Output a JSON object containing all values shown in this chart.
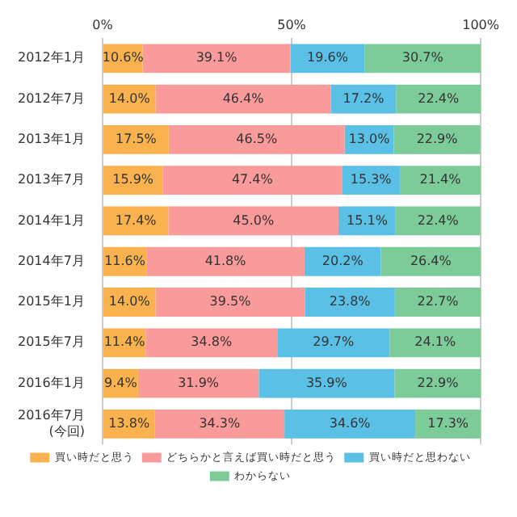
{
  "chart_data": {
    "type": "bar",
    "orientation": "horizontal",
    "stacked": true,
    "grid": "x",
    "legend": "bottom",
    "categories": [
      "2012年1月",
      "2012年7月",
      "2013年1月",
      "2013年7月",
      "2014年1月",
      "2014年7月",
      "2015年1月",
      "2015年7月",
      "2016年1月",
      "2016年7月\n(今回)"
    ],
    "xlim": [
      0,
      100
    ],
    "xticks": [
      {
        "value": 0,
        "label": "0%"
      },
      {
        "value": 50,
        "label": "50%"
      },
      {
        "value": 100,
        "label": "100%"
      }
    ],
    "series": [
      {
        "name": "買い時だと思う",
        "color": "#f9b24e",
        "values": [
          10.6,
          14.0,
          17.5,
          15.9,
          17.4,
          11.6,
          14.0,
          11.4,
          9.4,
          13.8
        ],
        "value_labels": [
          "10.6%",
          "14.0%",
          "17.5%",
          "15.9%",
          "17.4%",
          "11.6%",
          "14.0%",
          "11.4%",
          "9.4%",
          "13.8%"
        ]
      },
      {
        "name": "どちらかと言えば買い時だと思う",
        "color": "#f99a9b",
        "values": [
          39.1,
          46.4,
          46.5,
          47.4,
          45.0,
          41.8,
          39.5,
          34.8,
          31.9,
          34.3
        ],
        "value_labels": [
          "39.1%",
          "46.4%",
          "46.5%",
          "47.4%",
          "45.0%",
          "41.8%",
          "39.5%",
          "34.8%",
          "31.9%",
          "34.3%"
        ]
      },
      {
        "name": "買い時だと思わない",
        "color": "#5bc0e6",
        "values": [
          19.6,
          17.2,
          13.0,
          15.3,
          15.1,
          20.2,
          23.8,
          29.7,
          35.9,
          34.6
        ],
        "value_labels": [
          "19.6%",
          "17.2%",
          "13.0%",
          "15.3%",
          "15.1%",
          "20.2%",
          "23.8%",
          "29.7%",
          "35.9%",
          "34.6%"
        ]
      },
      {
        "name": "わからない",
        "color": "#7dcb98",
        "values": [
          30.7,
          22.4,
          22.9,
          21.4,
          22.4,
          26.4,
          22.7,
          24.1,
          22.9,
          17.3
        ],
        "value_labels": [
          "30.7%",
          "22.4%",
          "22.9%",
          "21.4%",
          "22.4%",
          "26.4%",
          "22.7%",
          "24.1%",
          "22.9%",
          "17.3%"
        ]
      }
    ]
  }
}
